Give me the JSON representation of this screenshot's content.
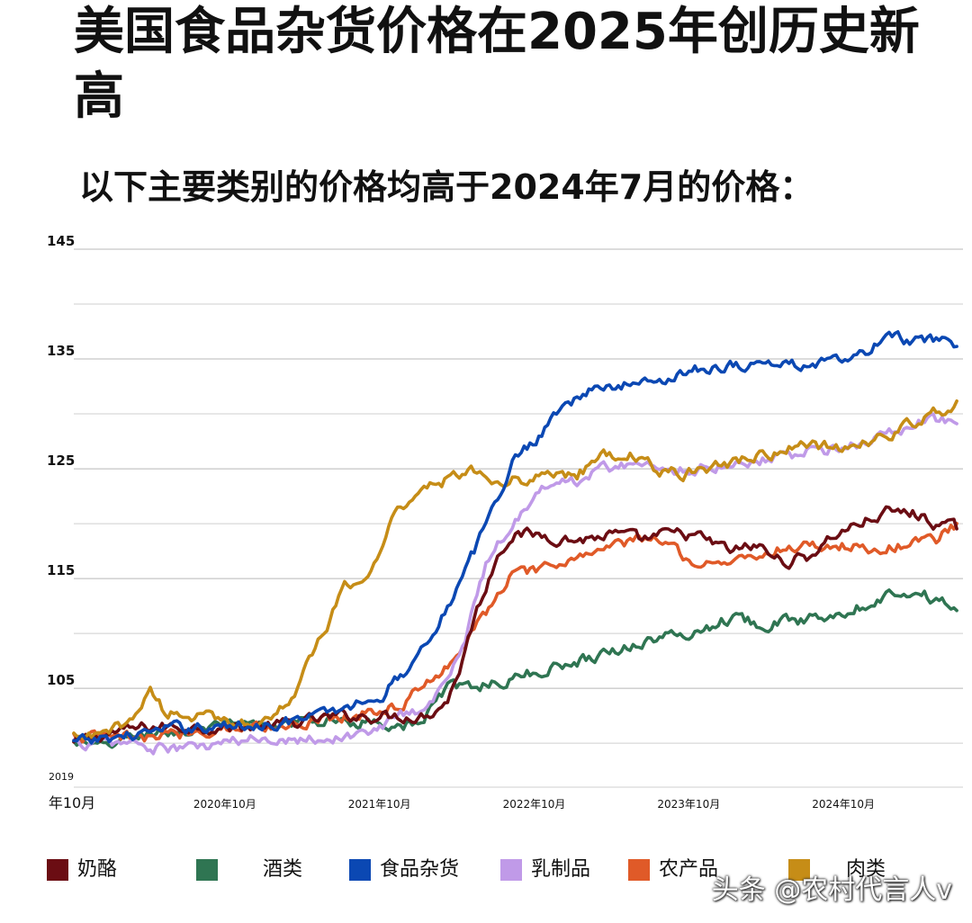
{
  "chart_data": {
    "type": "line",
    "title": "美国食品杂货价格在2025年创历史新高",
    "subtitle": "以下主要类别的价格均高于2024年7月的价格：",
    "ylim": [
      96,
      145
    ],
    "yticks": [
      "145",
      "135",
      "125",
      "115",
      "105"
    ],
    "y_tick_values": [
      145,
      135,
      125,
      115,
      105
    ],
    "xlim": [
      2019.75,
      2025.5
    ],
    "xticks": [
      {
        "value": 2019.75,
        "line1": "2019",
        "line2": "年10月"
      },
      {
        "value": 2020.75,
        "line1": "",
        "line2": "2020年10月"
      },
      {
        "value": 2021.75,
        "line1": "",
        "line2": "2021年10月"
      },
      {
        "value": 2022.75,
        "line1": "",
        "line2": "2022年10月"
      },
      {
        "value": 2023.75,
        "line1": "",
        "line2": "2023年10月"
      },
      {
        "value": 2024.75,
        "line1": "",
        "line2": "2024年10月"
      }
    ],
    "grid": true,
    "legend_position": "bottom",
    "series": [
      {
        "name": "奶酪",
        "color": "#6b0d13",
        "x": [
          2019.75,
          2020.0,
          2020.25,
          2020.5,
          2020.75,
          2021.0,
          2021.25,
          2021.5,
          2021.75,
          2022.0,
          2022.08,
          2022.17,
          2022.25,
          2022.33,
          2022.42,
          2022.5,
          2022.58,
          2022.75,
          2023.0,
          2023.25,
          2023.42,
          2023.58,
          2023.75,
          2024.0,
          2024.17,
          2024.33,
          2024.5,
          2024.67,
          2024.83,
          2025.0,
          2025.17,
          2025.33,
          2025.46
        ],
        "y": [
          100,
          101,
          101.5,
          101.5,
          101.5,
          101.5,
          102,
          102.5,
          102.5,
          102.5,
          103,
          104,
          107,
          111,
          114.5,
          117.5,
          119,
          119,
          118.5,
          119,
          118.5,
          119,
          119,
          117.5,
          118,
          116.5,
          117,
          119,
          120,
          121,
          121,
          120,
          119.5
        ]
      },
      {
        "name": "酒类",
        "color": "#2f7552",
        "x": [
          2019.75,
          2019.92,
          2020.0,
          2020.25,
          2020.5,
          2020.75,
          2021.0,
          2021.25,
          2021.5,
          2021.75,
          2022.0,
          2022.08,
          2022.17,
          2022.25,
          2022.33,
          2022.5,
          2022.75,
          2023.0,
          2023.25,
          2023.5,
          2023.75,
          2024.0,
          2024.17,
          2024.33,
          2024.5,
          2024.67,
          2024.83,
          2025.0,
          2025.17,
          2025.33,
          2025.46
        ],
        "y": [
          100,
          99.5,
          100,
          101,
          101,
          101.5,
          101.5,
          102,
          102,
          102,
          101.5,
          104,
          105,
          105,
          105.3,
          105.5,
          106.5,
          107.5,
          108.5,
          109.5,
          110,
          111.5,
          111,
          111,
          111.3,
          112,
          112.5,
          113.5,
          114,
          113,
          112.5
        ]
      },
      {
        "name": "食品杂货",
        "color": "#0b48b3",
        "x": [
          2019.75,
          2020.0,
          2020.25,
          2020.5,
          2020.75,
          2021.0,
          2021.25,
          2021.5,
          2021.75,
          2021.92,
          2022.08,
          2022.25,
          2022.42,
          2022.58,
          2022.75,
          2022.92,
          2023.08,
          2023.25,
          2023.5,
          2023.75,
          2024.0,
          2024.25,
          2024.5,
          2024.75,
          2024.92,
          2025.0,
          2025.08,
          2025.17,
          2025.33,
          2025.46
        ],
        "y": [
          100,
          100.5,
          101,
          101.5,
          101.5,
          101.8,
          102.2,
          103.2,
          104.5,
          107,
          110.5,
          114.5,
          120,
          125.5,
          128,
          131,
          132,
          132.5,
          133,
          134,
          134.5,
          134.5,
          134.5,
          134.8,
          136,
          137,
          137,
          136.5,
          136.5,
          136.5
        ]
      },
      {
        "name": "乳制品",
        "color": "#c09ae8",
        "x": [
          2019.75,
          2020.0,
          2020.17,
          2020.25,
          2020.5,
          2020.75,
          2021.0,
          2021.25,
          2021.5,
          2021.75,
          2021.92,
          2022.0,
          2022.08,
          2022.25,
          2022.42,
          2022.58,
          2022.75,
          2023.0,
          2023.17,
          2023.33,
          2023.5,
          2023.75,
          2024.0,
          2024.25,
          2024.5,
          2024.75,
          2025.0,
          2025.17,
          2025.33,
          2025.46
        ],
        "y": [
          100,
          100,
          100,
          99.5,
          99.5,
          100,
          100.5,
          100.5,
          100.5,
          101.5,
          103,
          103,
          104,
          108,
          116.5,
          120,
          123,
          124,
          125,
          125.5,
          125,
          125,
          125.5,
          126,
          126.5,
          127,
          128,
          129,
          129.5,
          129
        ]
      },
      {
        "name": "农产品",
        "color": "#e05a28",
        "x": [
          2019.75,
          2020.0,
          2020.25,
          2020.5,
          2020.75,
          2021.0,
          2021.25,
          2021.5,
          2021.75,
          2021.92,
          2022.08,
          2022.25,
          2022.42,
          2022.58,
          2022.75,
          2023.0,
          2023.25,
          2023.42,
          2023.58,
          2023.75,
          2024.0,
          2024.25,
          2024.5,
          2024.75,
          2025.0,
          2025.17,
          2025.33,
          2025.46
        ],
        "y": [
          100.5,
          100.5,
          100.5,
          101,
          101.5,
          101.5,
          102,
          102.5,
          103,
          104,
          106,
          108.5,
          112,
          115.5,
          115.5,
          117,
          118,
          118.5,
          118.5,
          116.5,
          116.5,
          117.5,
          118,
          118,
          117.5,
          118.5,
          118.5,
          120
        ]
      },
      {
        "name": "肉类",
        "color": "#c68d17",
        "x": [
          2019.75,
          2019.92,
          2020.0,
          2020.17,
          2020.25,
          2020.33,
          2020.5,
          2020.75,
          2021.0,
          2021.17,
          2021.33,
          2021.5,
          2021.67,
          2021.83,
          2022.0,
          2022.17,
          2022.33,
          2022.5,
          2022.67,
          2022.83,
          2023.0,
          2023.17,
          2023.33,
          2023.5,
          2023.67,
          2023.83,
          2024.0,
          2024.25,
          2024.5,
          2024.75,
          2025.0,
          2025.25,
          2025.46
        ],
        "y": [
          100.5,
          100.5,
          101,
          103,
          105,
          103,
          102.5,
          102,
          102,
          104.5,
          109,
          114,
          115.5,
          121,
          123.5,
          124,
          125,
          124,
          124,
          124.5,
          124.5,
          126,
          126.5,
          125,
          124.5,
          125,
          125.5,
          126.5,
          127,
          127,
          128,
          129.5,
          131
        ]
      }
    ],
    "watermark": "头条 @农村代言人v"
  }
}
